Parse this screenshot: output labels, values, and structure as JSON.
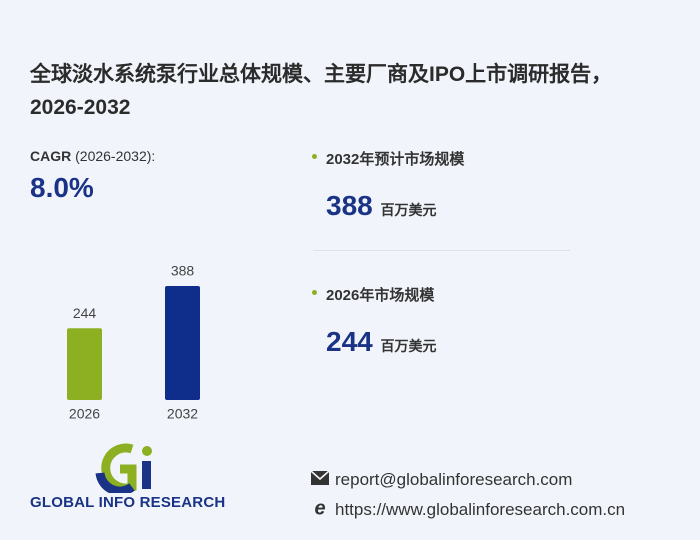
{
  "title": "全球淡水系统泵行业总体规模、主要厂商及IPO上市调研报告，2026-2032",
  "cagr": {
    "label": "CAGR",
    "period": "(2026-2032):",
    "value": "8.0%"
  },
  "chart_data": {
    "type": "bar",
    "categories": [
      "2026",
      "2032"
    ],
    "values": [
      244,
      388
    ],
    "colors": [
      "#8cb021",
      "#0f2d8a"
    ]
  },
  "stats": [
    {
      "label": "2032年预计市场规模",
      "value": 388,
      "unit": "百万美元"
    },
    {
      "label": "2026年市场规模",
      "value": 244,
      "unit": "百万美元"
    }
  ],
  "logo": {
    "text": "GLOBAL INFO RESEARCH"
  },
  "contact": {
    "email": "report@globalinforesearch.com",
    "website": "https://www.globalinforesearch.com.cn"
  }
}
